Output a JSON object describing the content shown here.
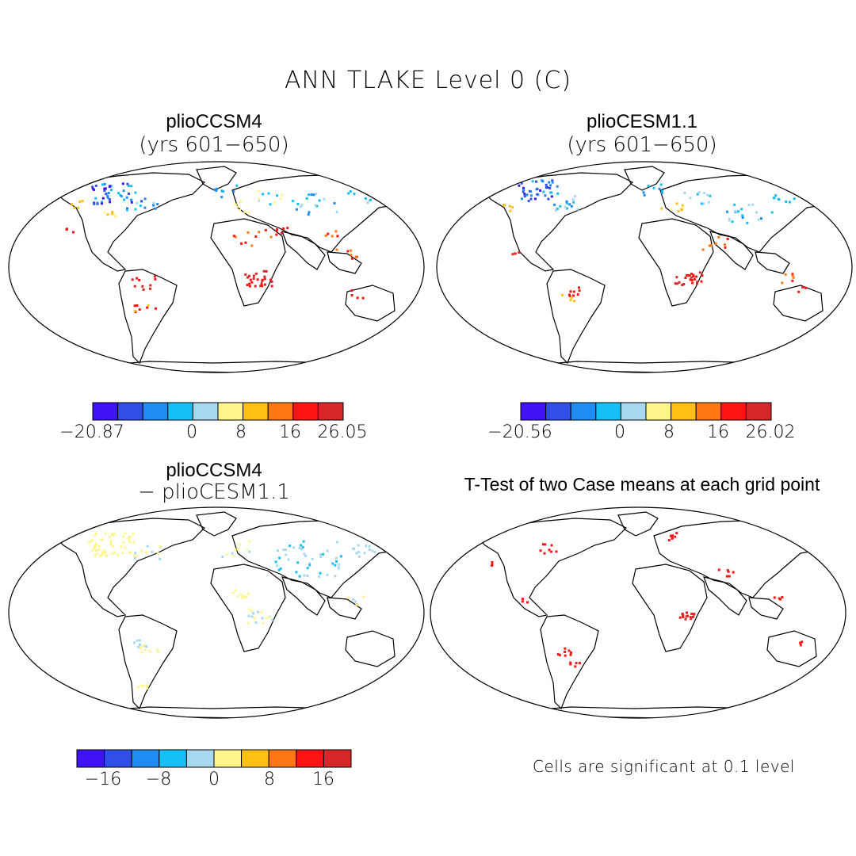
{
  "title": "ANN TLAKE Level 0 (C)",
  "panels": [
    {
      "id": "p1",
      "title": "plioCCSM4",
      "subtitle": "(yrs 601−650)"
    },
    {
      "id": "p2",
      "title": "plioCESM1.1",
      "subtitle": "(yrs 601−650)"
    },
    {
      "id": "p3",
      "title": "plioCCSM4",
      "subtitle": "− plioCESM1.1"
    },
    {
      "id": "p4",
      "title": "T-Test of two Case means at each grid point",
      "subtitle": ""
    }
  ],
  "colorbars": [
    {
      "id": "cb1",
      "colors": [
        "#3f13f5",
        "#2f4fe6",
        "#1e8cf0",
        "#14c0f5",
        "#a8d8f0",
        "#fff58c",
        "#ffbf14",
        "#ff7814",
        "#ff1414",
        "#d62828"
      ],
      "labels": [
        "−20.87",
        "0",
        "8",
        "16",
        "26.05"
      ]
    },
    {
      "id": "cb2",
      "colors": [
        "#3f13f5",
        "#2f4fe6",
        "#1e8cf0",
        "#14c0f5",
        "#a8d8f0",
        "#fff58c",
        "#ffbf14",
        "#ff7814",
        "#ff1414",
        "#d62828"
      ],
      "labels": [
        "−20.56",
        "0",
        "8",
        "16",
        "26.02"
      ]
    },
    {
      "id": "cb3",
      "colors": [
        "#3f13f5",
        "#2f4fe6",
        "#1e8cf0",
        "#14c0f5",
        "#a8d8f0",
        "#fff58c",
        "#ffbf14",
        "#ff7814",
        "#ff1414",
        "#d62828"
      ],
      "labels": [
        "−16",
        "−8",
        "0",
        "8",
        "16"
      ]
    }
  ],
  "note": "Cells are significant at 0.1 level"
}
